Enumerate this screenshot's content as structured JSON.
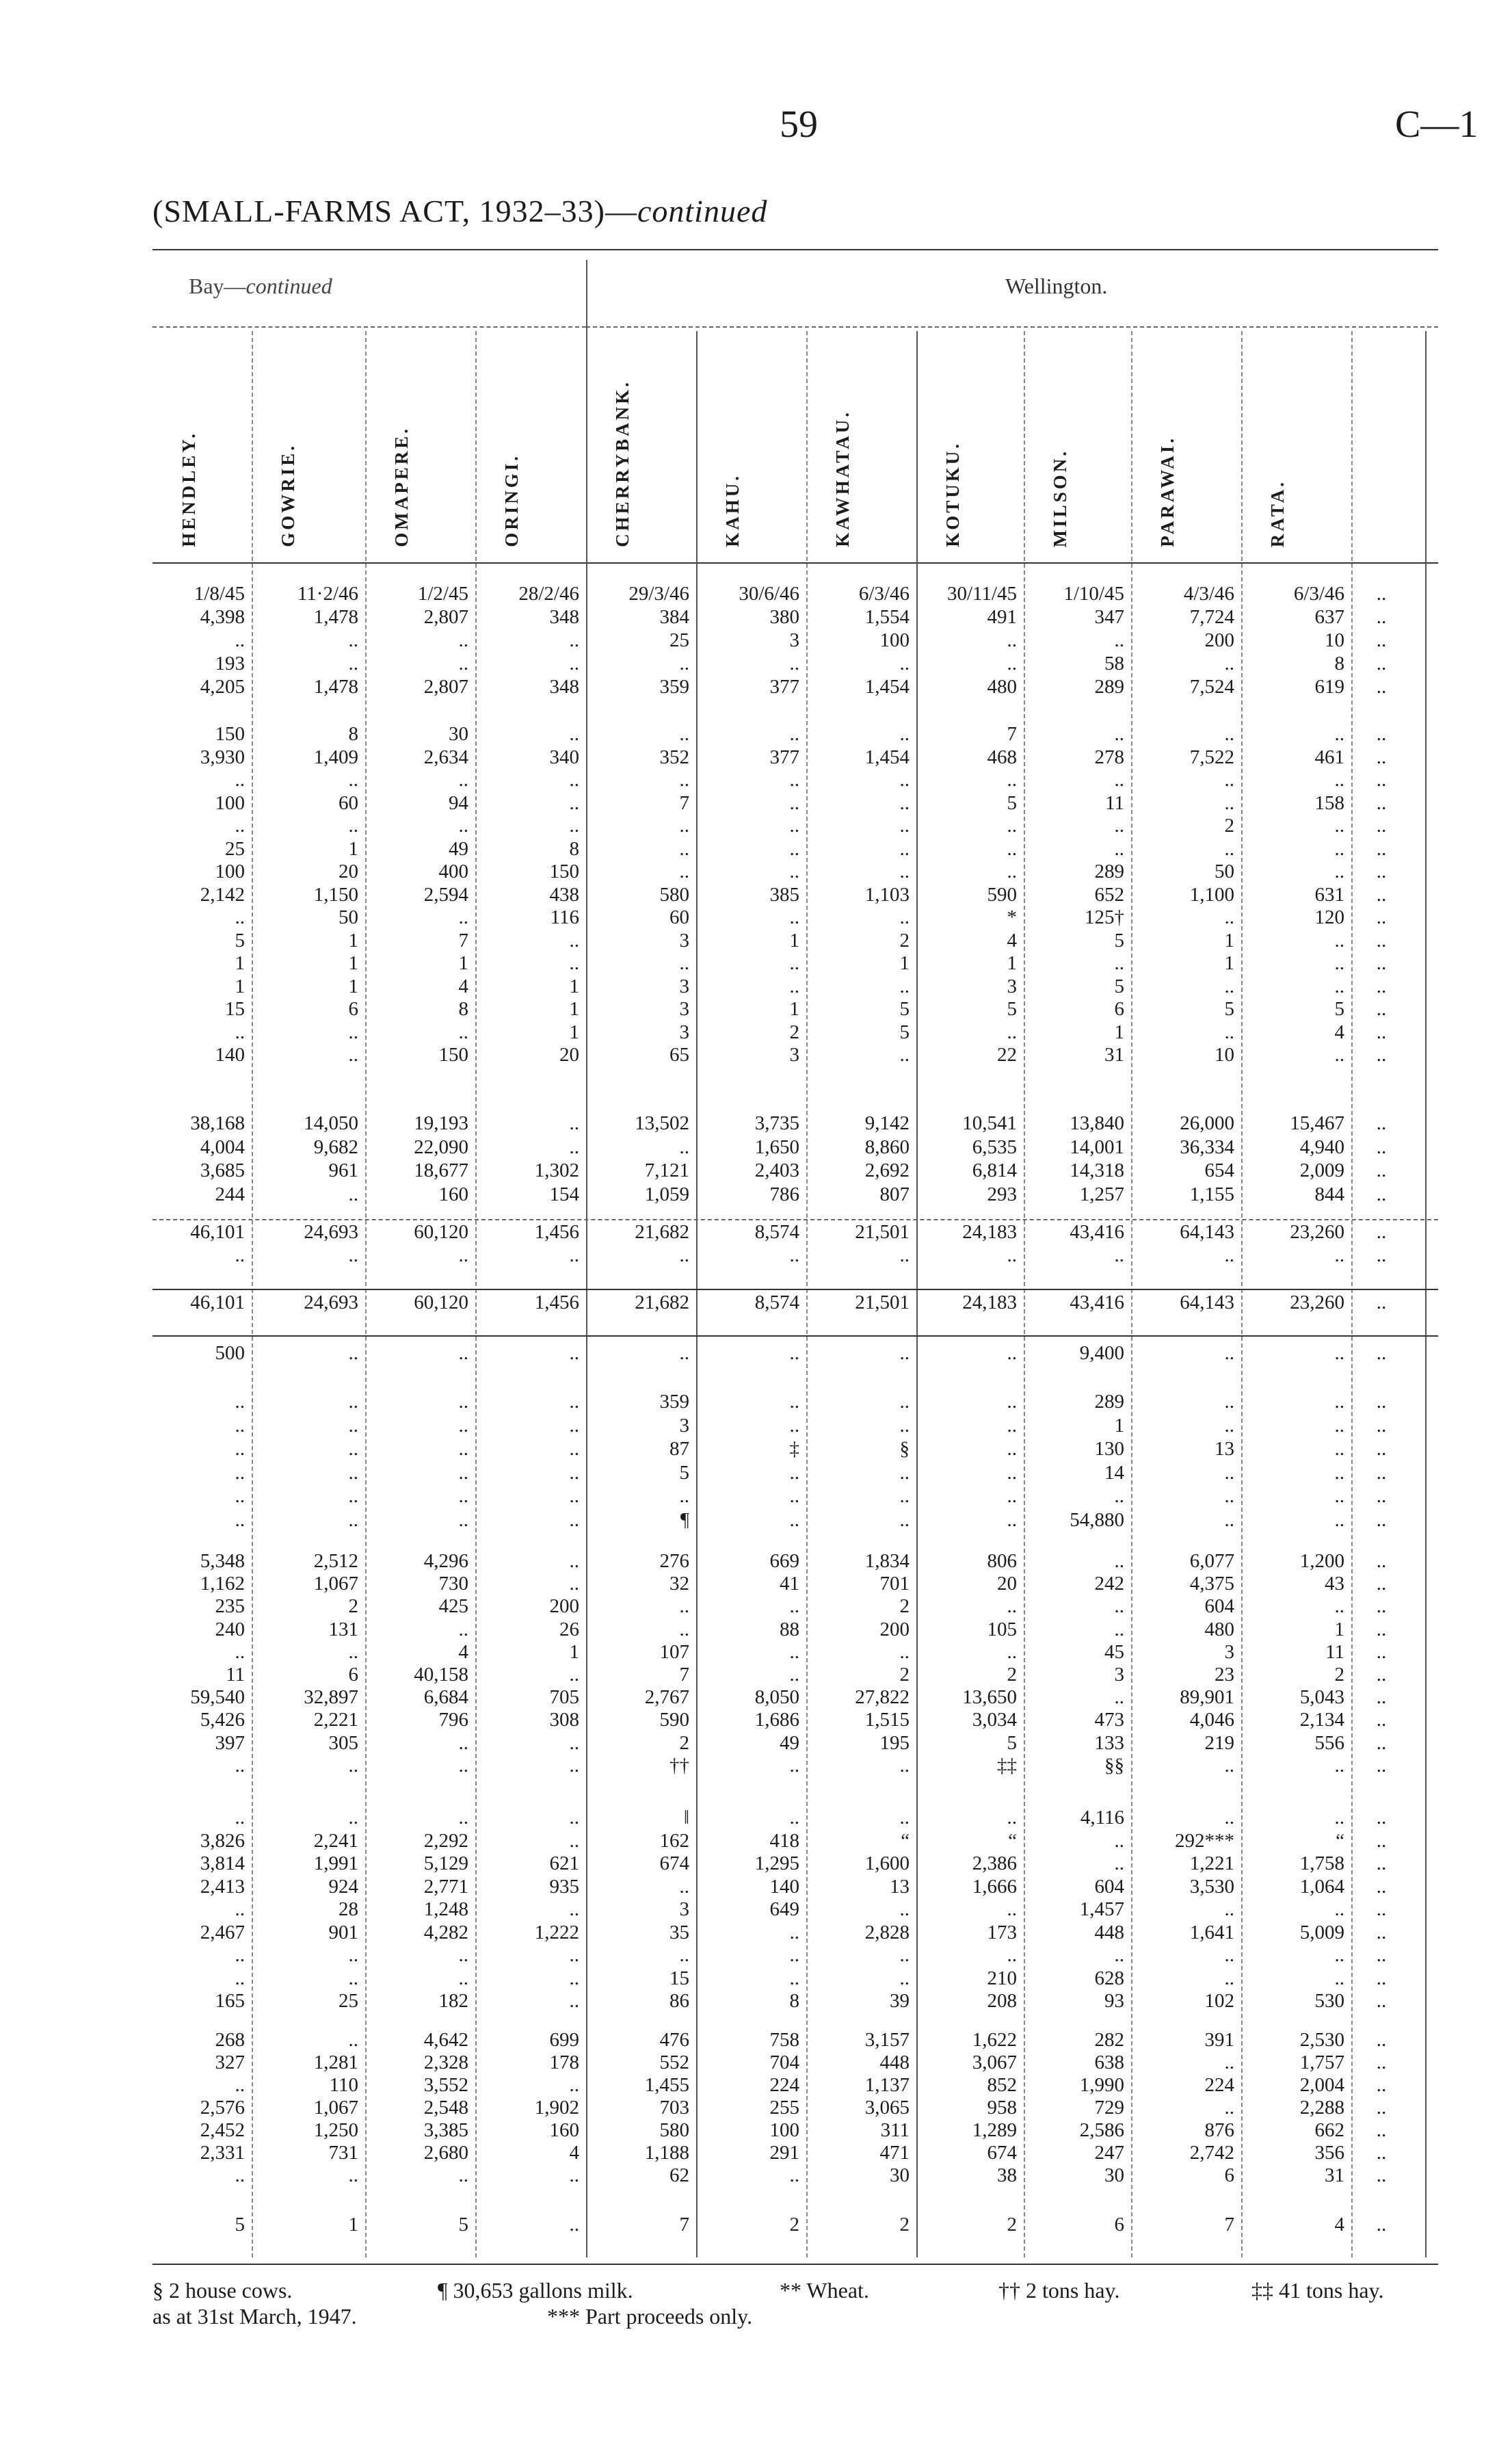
{
  "page_number": "59",
  "section_ref": "C—1",
  "title": {
    "main": "(SMALL-FARMS ACT, 1932–33)—",
    "italic": "continued"
  },
  "group_headers": {
    "bay": {
      "main": "Bay—",
      "italic": "continued"
    },
    "wellington": "Wellington."
  },
  "columns": [
    "HENDLEY.",
    "GOWRIE.",
    "OMAPERE.",
    "ORINGI.",
    "CHERRYBANK.",
    "KAHU.",
    "KAWHATAU.",
    "KOTUKU.",
    "MILSON.",
    "PARAWAI.",
    "RATA.",
    ""
  ],
  "blocks": [
    {
      "rows": [
        [
          "1/8/45",
          "11·2/46",
          "1/2/45",
          "28/2/46",
          "29/3/46",
          "30/6/46",
          "6/3/46",
          "30/11/45",
          "1/10/45",
          "4/3/46",
          "6/3/46",
          ".."
        ],
        [
          "4,398",
          "1,478",
          "2,807",
          "348",
          "384",
          "380",
          "1,554",
          "491",
          "347",
          "7,724",
          "637",
          ".."
        ],
        [
          "..",
          "..",
          "..",
          "..",
          "25",
          "3",
          "100",
          "..",
          "..",
          "200",
          "10",
          ".."
        ],
        [
          "193",
          "..",
          "..",
          "..",
          "..",
          "..",
          "..",
          "..",
          "58",
          "..",
          "8",
          ".."
        ],
        [
          "4,205",
          "1,478",
          "2,807",
          "348",
          "359",
          "377",
          "1,454",
          "480",
          "289",
          "7,524",
          "619",
          ".."
        ]
      ]
    },
    {
      "rows": [
        [
          "150",
          "8",
          "30",
          "..",
          "..",
          "..",
          "..",
          "7",
          "..",
          "..",
          "..",
          ".."
        ],
        [
          "3,930",
          "1,409",
          "2,634",
          "340",
          "352",
          "377",
          "1,454",
          "468",
          "278",
          "7,522",
          "461",
          ".."
        ],
        [
          "..",
          "..",
          "..",
          "..",
          "..",
          "..",
          "..",
          "..",
          "..",
          "..",
          "..",
          ".."
        ],
        [
          "100",
          "60",
          "94",
          "..",
          "7",
          "..",
          "..",
          "5",
          "11",
          "..",
          "158",
          ".."
        ],
        [
          "..",
          "..",
          "..",
          "..",
          "..",
          "..",
          "..",
          "..",
          "..",
          "2",
          "..",
          ".."
        ],
        [
          "25",
          "1",
          "49",
          "8",
          "..",
          "..",
          "..",
          "..",
          "..",
          "..",
          "..",
          ".."
        ],
        [
          "100",
          "20",
          "400",
          "150",
          "..",
          "..",
          "..",
          "..",
          "289",
          "50",
          "..",
          ".."
        ],
        [
          "2,142",
          "1,150",
          "2,594",
          "438",
          "580",
          "385",
          "1,103",
          "590",
          "652",
          "1,100",
          "631",
          ".."
        ],
        [
          "..",
          "50",
          "..",
          "116",
          "60",
          "..",
          "..",
          "*",
          "125†",
          "..",
          "120",
          ".."
        ],
        [
          "5",
          "1",
          "7",
          "..",
          "3",
          "1",
          "2",
          "4",
          "5",
          "1",
          "..",
          ".."
        ],
        [
          "1",
          "1",
          "1",
          "..",
          "..",
          "..",
          "1",
          "1",
          "..",
          "1",
          "..",
          ".."
        ],
        [
          "1",
          "1",
          "4",
          "1",
          "3",
          "..",
          "..",
          "3",
          "5",
          "..",
          "..",
          ".."
        ],
        [
          "15",
          "6",
          "8",
          "1",
          "3",
          "1",
          "5",
          "5",
          "6",
          "5",
          "5",
          ".."
        ],
        [
          "..",
          "..",
          "..",
          "1",
          "3",
          "2",
          "5",
          "..",
          "1",
          "..",
          "4",
          ".."
        ],
        [
          "140",
          "..",
          "150",
          "20",
          "65",
          "3",
          "..",
          "22",
          "31",
          "10",
          "..",
          ".."
        ]
      ]
    },
    {
      "rows": [
        [
          "38,168",
          "14,050",
          "19,193",
          "..",
          "13,502",
          "3,735",
          "9,142",
          "10,541",
          "13,840",
          "26,000",
          "15,467",
          ".."
        ],
        [
          "4,004",
          "9,682",
          "22,090",
          "..",
          "..",
          "1,650",
          "8,860",
          "6,535",
          "14,001",
          "36,334",
          "4,940",
          ".."
        ],
        [
          "3,685",
          "961",
          "18,677",
          "1,302",
          "7,121",
          "2,403",
          "2,692",
          "6,814",
          "14,318",
          "654",
          "2,009",
          ".."
        ],
        [
          "244",
          "..",
          "160",
          "154",
          "1,059",
          "786",
          "807",
          "293",
          "1,257",
          "1,155",
          "844",
          ".."
        ]
      ]
    },
    {
      "rows": [
        [
          "46,101",
          "24,693",
          "60,120",
          "1,456",
          "21,682",
          "8,574",
          "21,501",
          "24,183",
          "43,416",
          "64,143",
          "23,260",
          ".."
        ],
        [
          "..",
          "..",
          "..",
          "..",
          "..",
          "..",
          "..",
          "..",
          "..",
          "..",
          "..",
          ".."
        ]
      ]
    },
    {
      "rows": [
        [
          "46,101",
          "24,693",
          "60,120",
          "1,456",
          "21,682",
          "8,574",
          "21,501",
          "24,183",
          "43,416",
          "64,143",
          "23,260",
          ".."
        ]
      ]
    },
    {
      "rows": [
        [
          "500",
          "..",
          "..",
          "..",
          "..",
          "..",
          "..",
          "..",
          "9,400",
          "..",
          "..",
          ".."
        ]
      ]
    },
    {
      "rows": [
        [
          "..",
          "..",
          "..",
          "..",
          "359",
          "..",
          "..",
          "..",
          "289",
          "..",
          "..",
          ".."
        ],
        [
          "..",
          "..",
          "..",
          "..",
          "3",
          "..",
          "..",
          "..",
          "1",
          "..",
          "..",
          ".."
        ],
        [
          "..",
          "..",
          "..",
          "..",
          "87",
          "‡",
          "§",
          "..",
          "130",
          "13",
          "..",
          ".."
        ],
        [
          "..",
          "..",
          "..",
          "..",
          "5",
          "..",
          "..",
          "..",
          "14",
          "..",
          "..",
          ".."
        ],
        [
          "..",
          "..",
          "..",
          "..",
          "..",
          "..",
          "..",
          "..",
          "..",
          "..",
          "..",
          ".."
        ],
        [
          "..",
          "..",
          "..",
          "..",
          "¶",
          "..",
          "..",
          "..",
          "54,880",
          "..",
          "..",
          ".."
        ]
      ]
    },
    {
      "rows": [
        [
          "5,348",
          "2,512",
          "4,296",
          "..",
          "276",
          "669",
          "1,834",
          "806",
          "..",
          "6,077",
          "1,200",
          ".."
        ],
        [
          "1,162",
          "1,067",
          "730",
          "..",
          "32",
          "41",
          "701",
          "20",
          "242",
          "4,375",
          "43",
          ".."
        ],
        [
          "235",
          "2",
          "425",
          "200",
          "..",
          "..",
          "2",
          "..",
          "..",
          "604",
          "..",
          ".."
        ],
        [
          "240",
          "131",
          "..",
          "26",
          "..",
          "88",
          "200",
          "105",
          "..",
          "480",
          "1",
          ".."
        ],
        [
          "..",
          "..",
          "4",
          "1",
          "107",
          "..",
          "..",
          "..",
          "45",
          "3",
          "11",
          ".."
        ],
        [
          "11",
          "6",
          "40,158",
          "..",
          "7",
          "..",
          "2",
          "2",
          "3",
          "23",
          "2",
          ".."
        ],
        [
          "59,540",
          "32,897",
          "6,684",
          "705",
          "2,767",
          "8,050",
          "27,822",
          "13,650",
          "..",
          "89,901",
          "5,043",
          ".."
        ],
        [
          "5,426",
          "2,221",
          "796",
          "308",
          "590",
          "1,686",
          "1,515",
          "3,034",
          "473",
          "4,046",
          "2,134",
          ".."
        ],
        [
          "397",
          "305",
          "..",
          "..",
          "2",
          "49",
          "195",
          "5",
          "133",
          "219",
          "556",
          ".."
        ],
        [
          "..",
          "..",
          "..",
          "..",
          "††",
          "..",
          "..",
          "‡‡",
          "§§",
          "..",
          "..",
          ".."
        ]
      ]
    },
    {
      "rows": [
        [
          "..",
          "..",
          "..",
          "..",
          "‖",
          "..",
          "..",
          "..",
          "4,116",
          "..",
          "..",
          ".."
        ],
        [
          "3,826",
          "2,241",
          "2,292",
          "..",
          "162",
          "418",
          "“",
          "“",
          "..",
          "292***",
          "“",
          ".."
        ],
        [
          "3,814",
          "1,991",
          "5,129",
          "621",
          "674",
          "1,295",
          "1,600",
          "2,386",
          "..",
          "1,221",
          "1,758",
          ".."
        ],
        [
          "2,413",
          "924",
          "2,771",
          "935",
          "..",
          "140",
          "13",
          "1,666",
          "604",
          "3,530",
          "1,064",
          ".."
        ],
        [
          "..",
          "28",
          "1,248",
          "..",
          "3",
          "649",
          "..",
          "..",
          "1,457",
          "..",
          "..",
          ".."
        ],
        [
          "2,467",
          "901",
          "4,282",
          "1,222",
          "35",
          "..",
          "2,828",
          "173",
          "448",
          "1,641",
          "5,009",
          ".."
        ],
        [
          "..",
          "..",
          "..",
          "..",
          "..",
          "..",
          "..",
          "..",
          "..",
          "..",
          "..",
          ".."
        ],
        [
          "..",
          "..",
          "..",
          "..",
          "15",
          "..",
          "..",
          "210",
          "628",
          "..",
          "..",
          ".."
        ],
        [
          "165",
          "25",
          "182",
          "..",
          "86",
          "8",
          "39",
          "208",
          "93",
          "102",
          "530",
          ".."
        ]
      ]
    },
    {
      "rows": [
        [
          "268",
          "..",
          "4,642",
          "699",
          "476",
          "758",
          "3,157",
          "1,622",
          "282",
          "391",
          "2,530",
          ".."
        ],
        [
          "327",
          "1,281",
          "2,328",
          "178",
          "552",
          "704",
          "448",
          "3,067",
          "638",
          "..",
          "1,757",
          ".."
        ],
        [
          "..",
          "110",
          "3,552",
          "..",
          "1,455",
          "224",
          "1,137",
          "852",
          "1,990",
          "224",
          "2,004",
          ".."
        ],
        [
          "2,576",
          "1,067",
          "2,548",
          "1,902",
          "703",
          "255",
          "3,065",
          "958",
          "729",
          "..",
          "2,288",
          ".."
        ],
        [
          "2,452",
          "1,250",
          "3,385",
          "160",
          "580",
          "100",
          "311",
          "1,289",
          "2,586",
          "876",
          "662",
          ".."
        ],
        [
          "2,331",
          "731",
          "2,680",
          "4",
          "1,188",
          "291",
          "471",
          "674",
          "247",
          "2,742",
          "356",
          ".."
        ],
        [
          "..",
          "..",
          "..",
          "..",
          "62",
          "..",
          "30",
          "38",
          "30",
          "6",
          "31",
          ".."
        ]
      ]
    },
    {
      "rows": [
        [
          "5",
          "1",
          "5",
          "..",
          "7",
          "2",
          "2",
          "2",
          "6",
          "7",
          "4",
          ".."
        ]
      ]
    }
  ],
  "footnotes": [
    "§ 2 house cows.",
    "¶ 30,653 gallons milk.",
    "** Wheat.",
    "†† 2 tons hay.",
    "‡‡ 41 tons hay.",
    "as at 31st March, 1947.",
    "*** Part proceeds only."
  ]
}
